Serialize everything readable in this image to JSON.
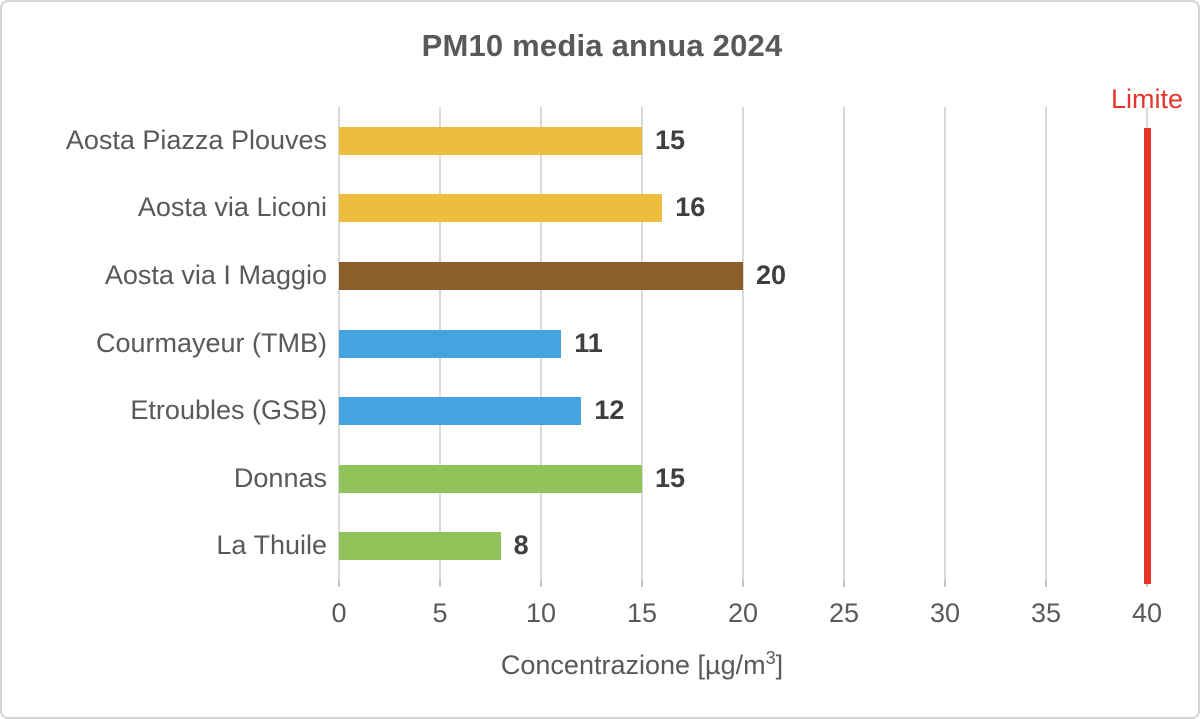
{
  "title": "PM10 media annua 2024",
  "chart_data": {
    "type": "bar",
    "orientation": "horizontal",
    "title": "PM10 media annua 2024",
    "categories": [
      "Aosta Piazza Plouves",
      "Aosta via Liconi",
      "Aosta via I Maggio",
      "Courmayeur (TMB)",
      "Etroubles (GSB)",
      "Donnas",
      "La Thuile"
    ],
    "values": [
      15,
      16,
      20,
      11,
      12,
      15,
      8
    ],
    "bar_colors": [
      "#edbe3e",
      "#edbe3e",
      "#8c5e2b",
      "#45a3df",
      "#45a3df",
      "#90c45a",
      "#90c45a"
    ],
    "value_labels": [
      "15",
      "16",
      "20",
      "11",
      "12",
      "15",
      "8"
    ],
    "xlabel": "Concentrazione [µg/m³]",
    "xlabel_parts": {
      "prefix": "Concentrazione [µg/m",
      "sup": "3",
      "suffix": "]"
    },
    "xlim": [
      0,
      40
    ],
    "xticks": [
      0,
      5,
      10,
      15,
      20,
      25,
      30,
      35,
      40
    ],
    "grid": true,
    "legend_position": "none",
    "limit_line": {
      "label": "Limite",
      "value": 40,
      "color": "#e6352b"
    }
  },
  "colors": {
    "title_text": "#595959",
    "axis_text": "#595959",
    "value_text": "#3f3f3f",
    "gridline": "#d9d9d9",
    "limit": "#e6352b",
    "gold": "#edbe3e",
    "brown": "#8c5e2b",
    "blue": "#45a3df",
    "green": "#90c45a"
  }
}
